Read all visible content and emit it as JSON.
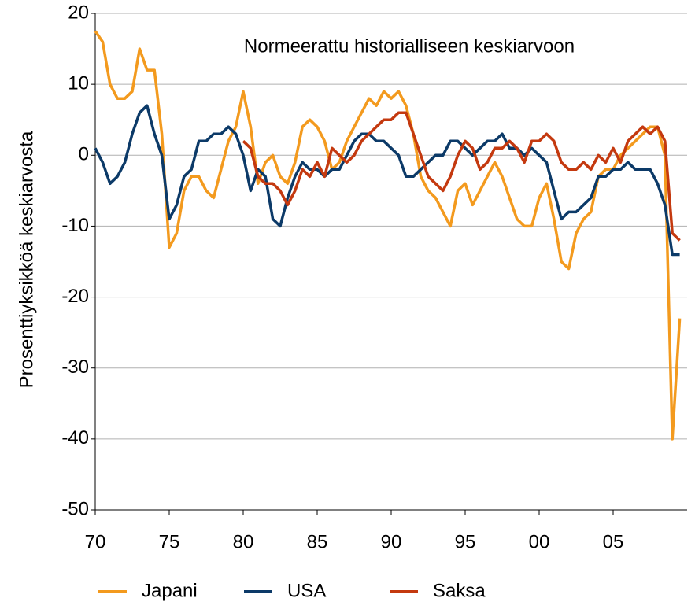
{
  "chart_data": {
    "type": "line",
    "title": "Normeerattu historialliseen keskiarvoon",
    "y_label": "Prosenttiyksikköä keskiarvosta",
    "x": [
      1970,
      1970.5,
      1971,
      1971.5,
      1972,
      1972.5,
      1973,
      1973.5,
      1974,
      1974.5,
      1975,
      1975.5,
      1976,
      1976.5,
      1977,
      1977.5,
      1978,
      1978.5,
      1979,
      1979.5,
      1980,
      1980.5,
      1981,
      1981.5,
      1982,
      1982.5,
      1983,
      1983.5,
      1984,
      1984.5,
      1985,
      1985.5,
      1986,
      1986.5,
      1987,
      1987.5,
      1988,
      1988.5,
      1989,
      1989.5,
      1990,
      1990.5,
      1991,
      1991.5,
      1992,
      1992.5,
      1993,
      1993.5,
      1994,
      1994.5,
      1995,
      1995.5,
      1996,
      1996.5,
      1997,
      1997.5,
      1998,
      1998.5,
      1999,
      1999.5,
      2000,
      2000.5,
      2001,
      2001.5,
      2002,
      2002.5,
      2003,
      2003.5,
      2004,
      2004.5,
      2005,
      2005.5,
      2006,
      2006.5,
      2007,
      2007.5,
      2008,
      2008.5,
      2009,
      2009.5
    ],
    "series": [
      {
        "name": "Japani",
        "color": "#f39a1e",
        "values": [
          17.5,
          16,
          10,
          8,
          8,
          9,
          15,
          12,
          12,
          3,
          -13,
          -11,
          -5,
          -3,
          -3,
          -5,
          -6,
          -2,
          2,
          4,
          9,
          4,
          -4,
          -1,
          0,
          -3,
          -4,
          -1,
          4,
          5,
          4,
          2,
          -2,
          -1,
          2,
          4,
          6,
          8,
          7,
          9,
          8,
          9,
          7,
          3,
          -3,
          -5,
          -6,
          -8,
          -10,
          -5,
          -4,
          -7,
          -5,
          -3,
          -1,
          -3,
          -6,
          -9,
          -10,
          -10,
          -6,
          -4,
          -9,
          -15,
          -16,
          -11,
          -9,
          -8,
          -3,
          -2,
          -2,
          0,
          1,
          2,
          3,
          4,
          4,
          0,
          -40,
          -23
        ]
      },
      {
        "name": "USA",
        "color": "#0c3a68",
        "values": [
          1,
          -1,
          -4,
          -3,
          -1,
          3,
          6,
          7,
          3,
          0,
          -9,
          -7,
          -3,
          -2,
          2,
          2,
          3,
          3,
          4,
          3,
          0,
          -5,
          -2,
          -3,
          -9,
          -10,
          -6,
          -3,
          -1,
          -2,
          -2,
          -3,
          -2,
          -2,
          0,
          2,
          3,
          3,
          2,
          2,
          1,
          0,
          -3,
          -3,
          -2,
          -1,
          0,
          0,
          2,
          2,
          1,
          0,
          1,
          2,
          2,
          3,
          1,
          1,
          0,
          1,
          0,
          -1,
          -5,
          -9,
          -8,
          -8,
          -7,
          -6,
          -3,
          -3,
          -2,
          -2,
          -1,
          -2,
          -2,
          -2,
          -4,
          -7,
          -14,
          -14
        ]
      },
      {
        "name": "Saksa",
        "color": "#c4390f",
        "values": [
          null,
          null,
          null,
          null,
          null,
          null,
          null,
          null,
          null,
          null,
          null,
          null,
          null,
          null,
          null,
          null,
          null,
          null,
          null,
          null,
          2,
          1,
          -3,
          -4,
          -4,
          -5,
          -7,
          -5,
          -2,
          -3,
          -1,
          -3,
          1,
          0,
          -1,
          0,
          2,
          3,
          4,
          5,
          5,
          6,
          6,
          3,
          0,
          -3,
          -4,
          -5,
          -3,
          0,
          2,
          1,
          -2,
          -1,
          1,
          1,
          2,
          1,
          -1,
          2,
          2,
          3,
          2,
          -1,
          -2,
          -2,
          -1,
          -2,
          0,
          -1,
          1,
          -1,
          2,
          3,
          4,
          3,
          4,
          2,
          -11,
          -12
        ]
      }
    ],
    "xlim": [
      1970,
      2010
    ],
    "xticks": [
      {
        "value": 1970,
        "label": "70"
      },
      {
        "value": 1975,
        "label": "75"
      },
      {
        "value": 1980,
        "label": "80"
      },
      {
        "value": 1985,
        "label": "85"
      },
      {
        "value": 1990,
        "label": "90"
      },
      {
        "value": 1995,
        "label": "95"
      },
      {
        "value": 2000,
        "label": "00"
      },
      {
        "value": 2005,
        "label": "05"
      }
    ],
    "ylim": [
      -50,
      20
    ],
    "yticks": [
      -50,
      -40,
      -30,
      -20,
      -10,
      0,
      10,
      20
    ],
    "grid": true,
    "legend": "bottom"
  }
}
